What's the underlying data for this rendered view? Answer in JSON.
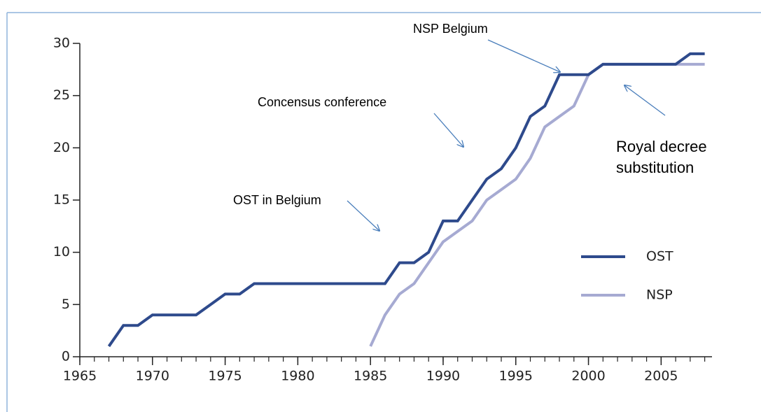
{
  "chart_data": {
    "type": "line",
    "x": [
      1967,
      1968,
      1969,
      1970,
      1971,
      1972,
      1973,
      1974,
      1975,
      1976,
      1977,
      1978,
      1979,
      1980,
      1981,
      1982,
      1983,
      1984,
      1985,
      1986,
      1987,
      1988,
      1989,
      1990,
      1991,
      1992,
      1993,
      1994,
      1995,
      1996,
      1997,
      1998,
      1999,
      2000,
      2001,
      2002,
      2003,
      2004,
      2005,
      2006,
      2007,
      2008
    ],
    "series": [
      {
        "name": "OST",
        "color": "#2e4a8c",
        "values": [
          1,
          3,
          3,
          4,
          4,
          4,
          4,
          5,
          6,
          6,
          7,
          7,
          7,
          7,
          7,
          7,
          7,
          7,
          7,
          7,
          9,
          9,
          10,
          13,
          13,
          15,
          17,
          18,
          20,
          23,
          24,
          27,
          27,
          27,
          28,
          28,
          28,
          28,
          28,
          28,
          29,
          29
        ]
      },
      {
        "name": "NSP",
        "color": "#a6aad2",
        "values": [
          null,
          null,
          null,
          null,
          null,
          null,
          null,
          null,
          null,
          null,
          null,
          null,
          null,
          null,
          null,
          null,
          null,
          null,
          1,
          4,
          6,
          7,
          9,
          11,
          12,
          13,
          15,
          16,
          17,
          19,
          22,
          23,
          24,
          27,
          28,
          28,
          28,
          28,
          28,
          28,
          28,
          28
        ]
      }
    ],
    "xlim": [
      1965,
      2008.5
    ],
    "xticks": [
      1965,
      1970,
      1975,
      1980,
      1985,
      1990,
      1995,
      2000,
      2005
    ],
    "xminorticks": [
      1965,
      1966,
      1967,
      1968,
      1969,
      1970,
      1971,
      1972,
      1973,
      1974,
      1975,
      1976,
      1977,
      1978,
      1979,
      1980,
      1981,
      1982,
      1983,
      1984,
      1985,
      1986,
      1987,
      1988,
      1989,
      1990,
      1991,
      1992,
      1993,
      1994,
      1995,
      1996,
      1997,
      1998,
      1999,
      2000,
      2001,
      2002,
      2003,
      2004,
      2005,
      2006,
      2007,
      2008
    ],
    "ylim": [
      0,
      30
    ],
    "yticks": [
      0,
      5,
      10,
      15,
      20,
      25,
      30
    ],
    "legend": "right",
    "annotations": [
      "NSP Belgium",
      "Concensus conference",
      "OST in Belgium",
      "Royal decree substitution"
    ]
  }
}
